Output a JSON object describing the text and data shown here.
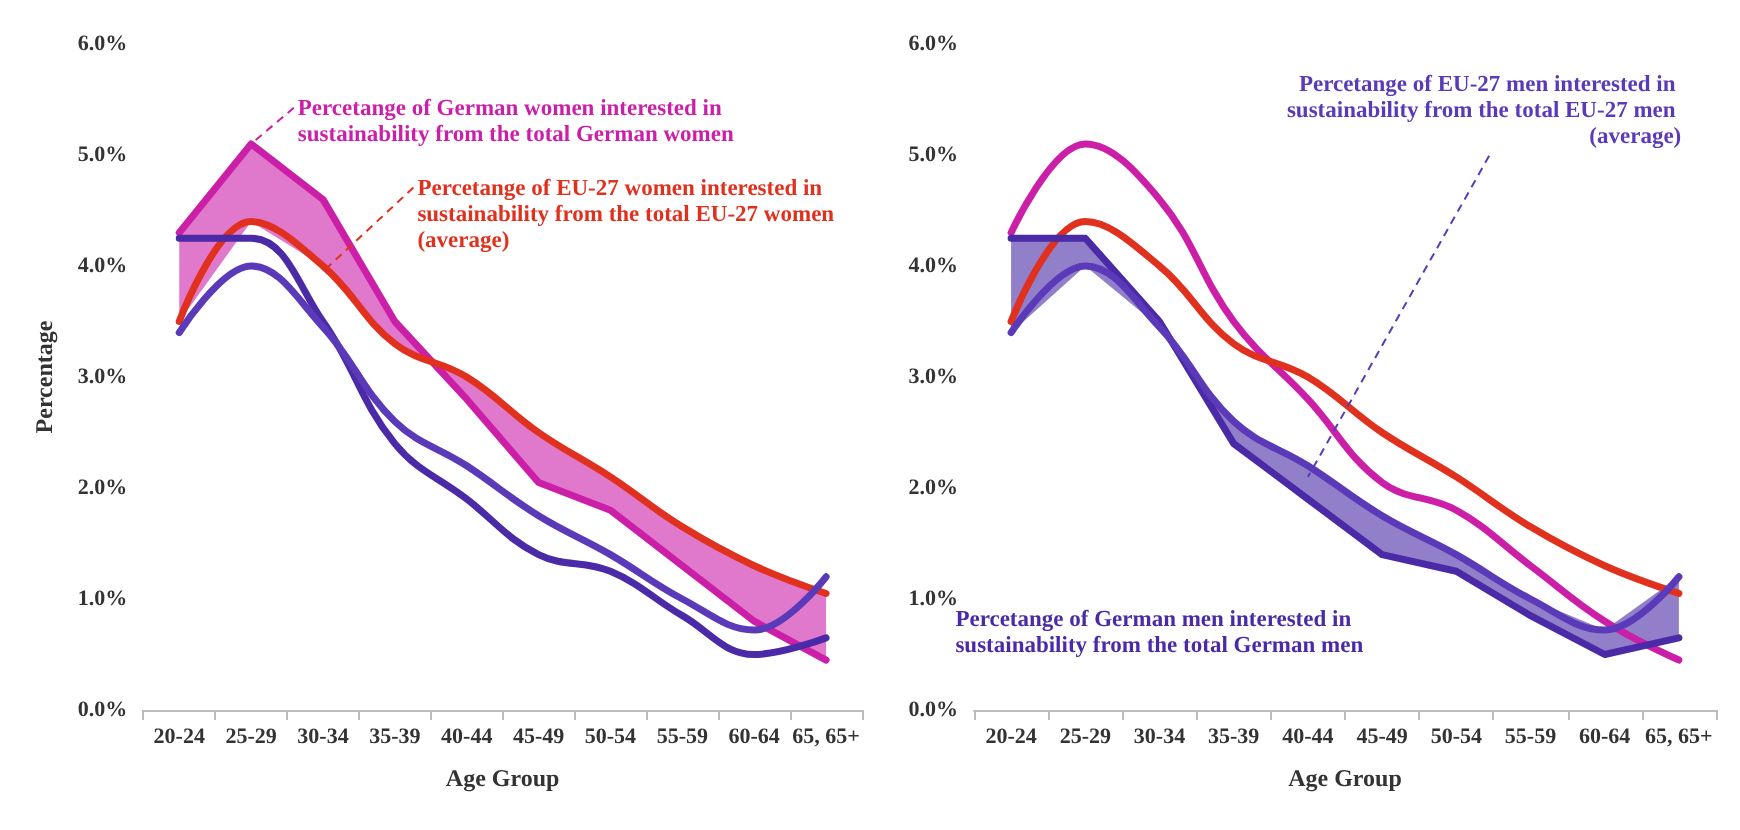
{
  "chart_data": [
    {
      "type": "line",
      "ylabel": "Percentage",
      "xlabel": "Age Group",
      "categories": [
        "20-24",
        "25-29",
        "30-34",
        "35-39",
        "40-44",
        "45-49",
        "50-54",
        "55-59",
        "60-64",
        "65, 65+"
      ],
      "ylim": [
        0,
        6
      ],
      "yticks": [
        {
          "value": 0,
          "label": "0.0%"
        },
        {
          "value": 1,
          "label": "1.0%"
        },
        {
          "value": 2,
          "label": "2.0%"
        },
        {
          "value": 3,
          "label": "3.0%"
        },
        {
          "value": 4,
          "label": "4.0%"
        },
        {
          "value": 5,
          "label": "5.0%"
        },
        {
          "value": 6,
          "label": "6.0%"
        }
      ],
      "grid": false,
      "marker": "none",
      "line_style": "solid",
      "series": [
        {
          "color": "#cc1fa8",
          "values": [
            4.3,
            5.1,
            4.6,
            3.5,
            2.8,
            2.05,
            1.8,
            1.3,
            0.8,
            0.45
          ],
          "upper": [
            4.3,
            5.1,
            4.6,
            3.5,
            2.8,
            2.05,
            1.8,
            1.3,
            0.8,
            0.45
          ],
          "lower": [
            3.5,
            4.4,
            4.0,
            3.3,
            3.0,
            2.5,
            2.1,
            1.65,
            1.3,
            1.05
          ]
        },
        {
          "color": "#e0301e",
          "values": [
            3.5,
            4.4,
            4.0,
            3.3,
            3.0,
            2.5,
            2.1,
            1.65,
            1.3,
            1.05
          ]
        },
        {
          "color": "#4a2aa6",
          "values": [
            4.25,
            4.25,
            3.5,
            2.4,
            1.9,
            1.4,
            1.25,
            0.85,
            0.5,
            0.65
          ]
        },
        {
          "color": "#5a3ab8",
          "values": [
            3.4,
            4.0,
            3.45,
            2.6,
            2.2,
            1.75,
            1.4,
            1.0,
            0.72,
            1.2
          ]
        }
      ],
      "annotations": [
        {
          "text": "Percetange of German women interested in sustainability from the total German women",
          "x": "25-29",
          "y": 5.1
        },
        {
          "text": "Percetange of EU-27 women interested in sustainability from the total EU-27 women (average)",
          "x": "30-34",
          "y": 3.95
        }
      ]
    },
    {
      "type": "line",
      "xlabel": "Age Group",
      "categories": [
        "20-24",
        "25-29",
        "30-34",
        "35-39",
        "40-44",
        "45-49",
        "50-54",
        "55-59",
        "60-64",
        "65, 65+"
      ],
      "ylim": [
        0,
        6
      ],
      "yticks": [
        {
          "value": 0,
          "label": "0.0%"
        },
        {
          "value": 1,
          "label": "1.0%"
        },
        {
          "value": 2,
          "label": "2.0%"
        },
        {
          "value": 3,
          "label": "3.0%"
        },
        {
          "value": 4,
          "label": "4.0%"
        },
        {
          "value": 5,
          "label": "5.0%"
        },
        {
          "value": 6,
          "label": "6.0%"
        }
      ],
      "grid": false,
      "marker": "none",
      "line_style": "solid",
      "series": [
        {
          "color": "#cc1fa8",
          "values": [
            4.3,
            5.1,
            4.6,
            3.5,
            2.8,
            2.05,
            1.8,
            1.3,
            0.8,
            0.45
          ]
        },
        {
          "color": "#e0301e",
          "values": [
            3.5,
            4.4,
            4.0,
            3.3,
            3.0,
            2.5,
            2.1,
            1.65,
            1.3,
            1.05
          ]
        },
        {
          "color": "#4a2aa6",
          "values": [
            4.25,
            4.25,
            3.5,
            2.4,
            1.9,
            1.4,
            1.25,
            0.85,
            0.5,
            0.65
          ],
          "upper": [
            4.25,
            4.25,
            3.5,
            2.4,
            1.9,
            1.4,
            1.25,
            0.85,
            0.5,
            0.65
          ],
          "lower": [
            3.4,
            4.0,
            3.45,
            2.6,
            2.2,
            1.75,
            1.4,
            1.0,
            0.72,
            1.2
          ]
        },
        {
          "color": "#5a3ab8",
          "values": [
            3.4,
            4.0,
            3.45,
            2.6,
            2.2,
            1.75,
            1.4,
            1.0,
            0.72,
            1.2
          ]
        }
      ],
      "annotations": [
        {
          "text": "Percetange of EU-27 men interested in sustainability from the total EU-27 men (average)",
          "x": "40-44",
          "y": 2.1
        },
        "Percetange of German men interested in sustainability from the total German men"
      ]
    }
  ]
}
